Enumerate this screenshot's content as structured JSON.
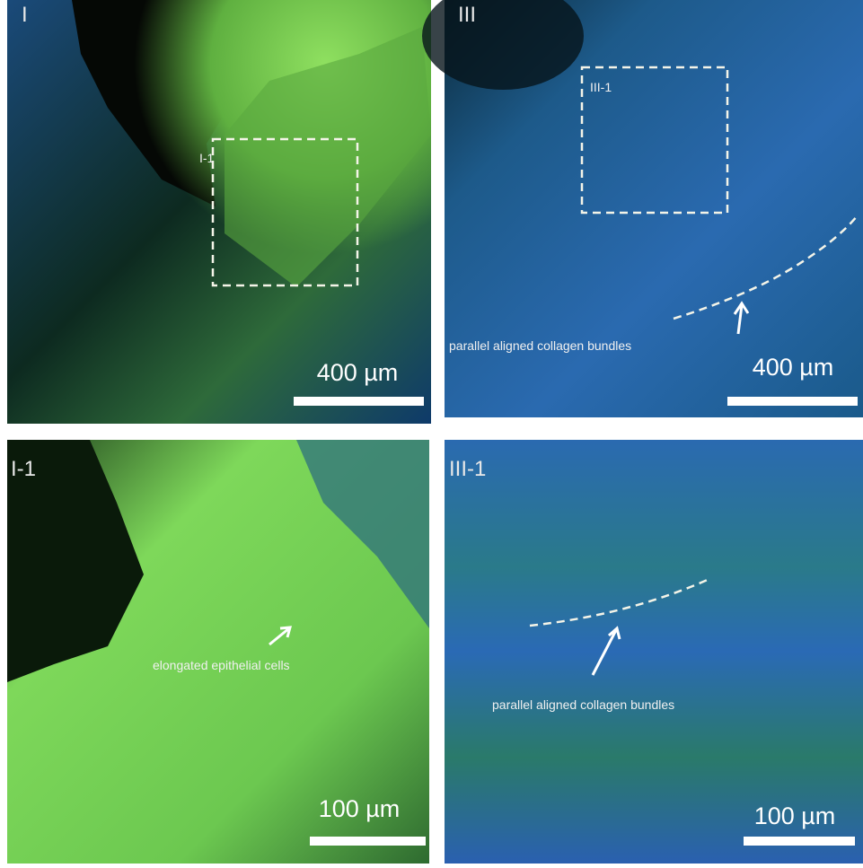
{
  "panels": [
    {
      "label": "I",
      "inset_label": "I-1",
      "scale_label": "400 µm"
    },
    {
      "label": "III",
      "inset_label": "III-1",
      "scale_label": "400 µm",
      "annotation": "parallel aligned collagen bundles"
    },
    {
      "label": "I-1",
      "scale_label": "100 µm",
      "annotation": "elongated epithelial cells"
    },
    {
      "label": "III-1",
      "scale_label": "100 µm",
      "annotation": "parallel aligned collagen bundles"
    }
  ]
}
